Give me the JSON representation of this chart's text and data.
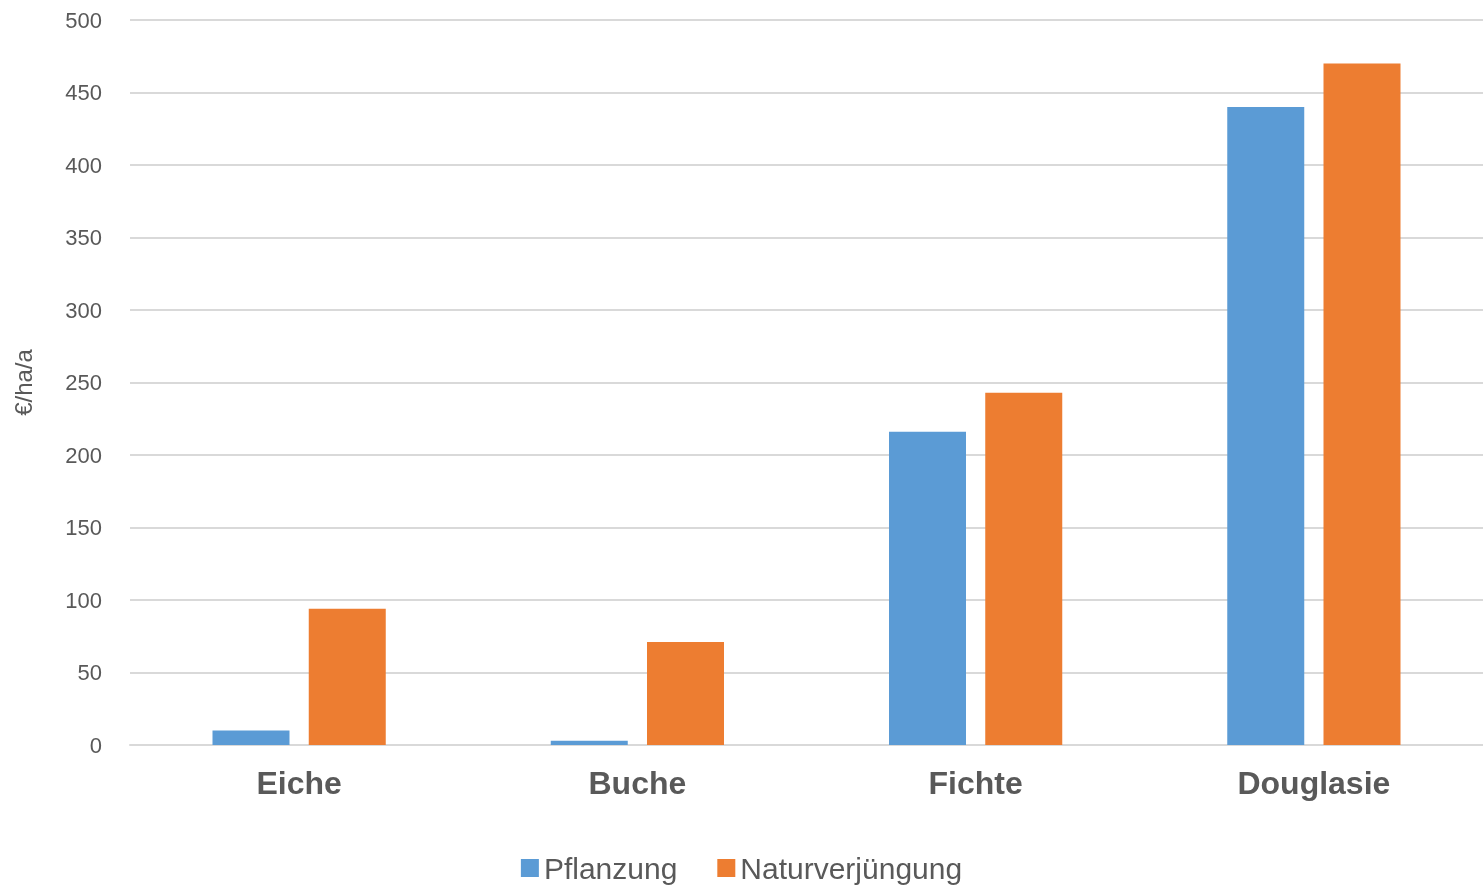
{
  "chart_data": {
    "type": "bar",
    "ylabel": "€/ha/a",
    "categories": [
      "Eiche",
      "Buche",
      "Fichte",
      "Douglasie"
    ],
    "series": [
      {
        "name": "Pflanzung",
        "color": "#5b9bd5",
        "values": [
          10,
          3,
          216,
          440
        ]
      },
      {
        "name": "Naturverjüngung",
        "color": "#ed7d31",
        "values": [
          94,
          71,
          243,
          470
        ]
      }
    ],
    "ylim": [
      0,
      500
    ],
    "yticks": [
      0,
      50,
      100,
      150,
      200,
      250,
      300,
      350,
      400,
      450,
      500
    ],
    "grid": "y",
    "legend": "bottom"
  }
}
